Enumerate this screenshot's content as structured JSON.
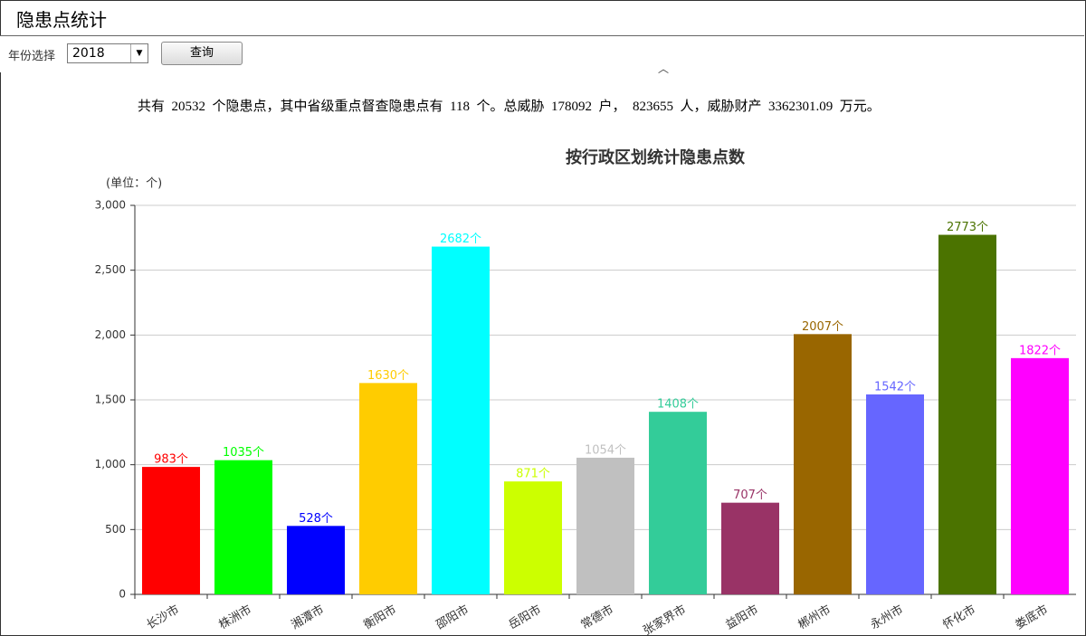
{
  "header": {
    "title": "隐患点统计"
  },
  "controls": {
    "year_label": "年份选择",
    "year_value": "2018",
    "query_button": "查询"
  },
  "summary": "共有  20532  个隐患点，其中省级重点督查隐患点有  118  个。总威胁  178092  户，  823655  人，威胁财产  3362301.09  万元。",
  "chart_data": {
    "type": "bar",
    "title": "按行政区划统计隐患点数",
    "y_label": "(单位：个)",
    "categories": [
      "长沙市",
      "株洲市",
      "湘潭市",
      "衡阳市",
      "邵阳市",
      "岳阳市",
      "常德市",
      "张家界市",
      "益阳市",
      "郴州市",
      "永州市",
      "怀化市",
      "娄底市"
    ],
    "values": [
      983,
      1035,
      528,
      1630,
      2682,
      871,
      1054,
      1408,
      707,
      2007,
      1542,
      2773,
      1822
    ],
    "value_labels": [
      "983个",
      "1035个",
      "528个",
      "1630个",
      "2682个",
      "871个",
      "1054个",
      "1408个",
      "707个",
      "2007个",
      "1542个",
      "2773个",
      "1822个"
    ],
    "colors": [
      "#ff0000",
      "#00ff00",
      "#0000ff",
      "#ffcc00",
      "#00ffff",
      "#ccff00",
      "#c0c0c0",
      "#33cc99",
      "#993366",
      "#996600",
      "#6666ff",
      "#4b7300",
      "#ff00ff"
    ],
    "ylim": [
      0,
      3000
    ],
    "yticks": [
      0,
      500,
      {
        "value": 1000,
        "label": "1,000"
      },
      {
        "value": 1500,
        "label": "1,500"
      },
      {
        "value": 2000,
        "label": "2,000"
      },
      {
        "value": 2500,
        "label": "2,500"
      },
      {
        "value": 3000,
        "label": "3,000"
      }
    ],
    "grid": true
  }
}
